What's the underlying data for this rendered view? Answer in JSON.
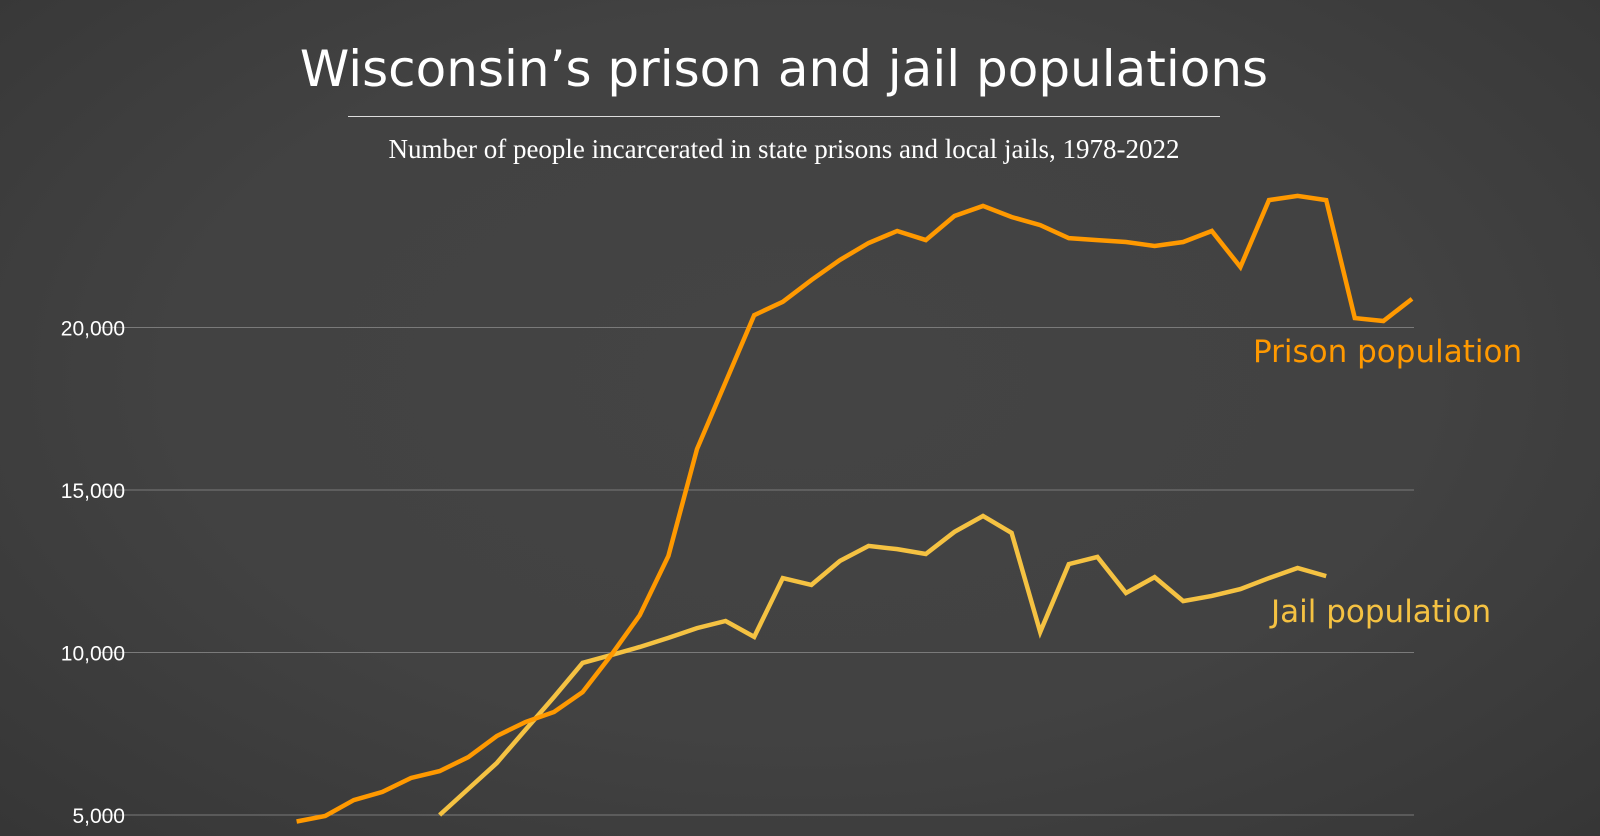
{
  "chart_data": {
    "type": "line",
    "title": "Wisconsin’s prison and jail populations",
    "subtitle": "Number of people incarcerated in state prisons and local jails, 1978-2022",
    "xlabel": "",
    "ylabel": "",
    "y_ticks": [
      5000,
      10000,
      15000,
      20000
    ],
    "y_tick_labels": [
      "5,000",
      "10,000",
      "15,000",
      "20,000"
    ],
    "grid": "horizontal",
    "x_range": [
      1978,
      2022
    ],
    "colors": {
      "prison": "#ff9900",
      "jail": "#f5c242",
      "background": "#404040",
      "grid": "#7a7a7a"
    },
    "series": [
      {
        "name": "Prison population",
        "color": "#ff9900",
        "x": [
          1983,
          1984,
          1985,
          1986,
          1987,
          1988,
          1989,
          1990,
          1991,
          1992,
          1993,
          1994,
          1995,
          1996,
          1997,
          1998,
          1999,
          2000,
          2001,
          2002,
          2003,
          2004,
          2005,
          2006,
          2007,
          2008,
          2009,
          2010,
          2011,
          2012,
          2013,
          2014,
          2015,
          2016,
          2017,
          2018,
          2019,
          2020,
          2021,
          2022
        ],
        "values": [
          4800,
          4970,
          5460,
          5710,
          6140,
          6350,
          6780,
          7430,
          7860,
          8170,
          8780,
          9920,
          11150,
          12970,
          16260,
          18320,
          20380,
          20790,
          21460,
          22080,
          22600,
          22970,
          22690,
          23430,
          23740,
          23400,
          23150,
          22750,
          22690,
          22630,
          22510,
          22630,
          22970,
          21860,
          23920,
          24050,
          23920,
          20290,
          20200,
          20880
        ]
      },
      {
        "name": "Jail population",
        "color": "#f5c242",
        "x": [
          1988,
          1989,
          1990,
          1991,
          1992,
          1993,
          1994,
          1995,
          1996,
          1997,
          1998,
          1999,
          2000,
          2001,
          2002,
          2003,
          2004,
          2005,
          2006,
          2007,
          2008,
          2009,
          2010,
          2011,
          2012,
          2013,
          2014,
          2015,
          2016,
          2017,
          2018,
          2019
        ],
        "values": [
          5000,
          5800,
          6600,
          7620,
          8630,
          9680,
          9920,
          10170,
          10450,
          10750,
          10970,
          10480,
          12290,
          12080,
          12820,
          13280,
          13180,
          13030,
          13710,
          14200,
          13680,
          10630,
          12720,
          12940,
          11830,
          12320,
          11580,
          11740,
          11950,
          12290,
          12600,
          12350
        ]
      }
    ]
  }
}
